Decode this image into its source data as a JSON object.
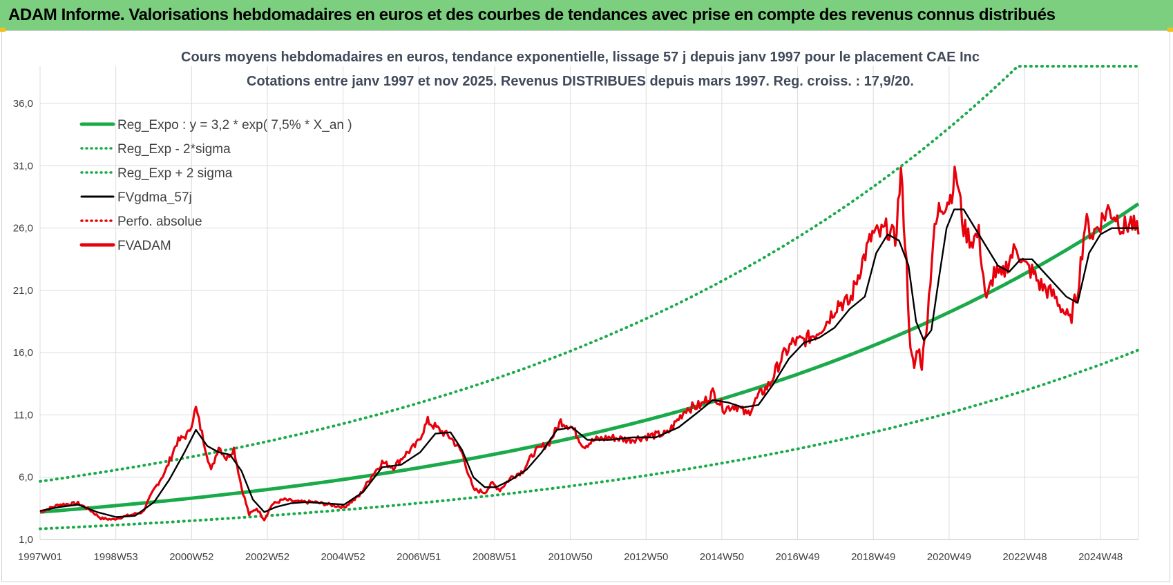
{
  "banner": {
    "title": "ADAM Informe. Valorisations hebdomadaires en euros et des courbes de tendances avec prise en compte des revenus connus distribués"
  },
  "colors": {
    "banner_bg": "#7ccf7e",
    "trend": "#1aaa4a",
    "fv57": "#000000",
    "fvadam": "#e8000b",
    "perfo": "#e8000b",
    "grid": "#dcdcdc"
  },
  "chart_data": {
    "type": "line",
    "title_lines": [
      "Cours moyens hebdomadaires en euros, tendance exponentielle, lissage 57 j depuis janv 1997  pour le placement CAE Inc",
      "Cotations entre janv 1997 et nov 2025. Revenus DISTRIBUES depuis mars 1997.  Reg. croiss. : 17,9/20."
    ],
    "x_tick_labels": [
      "1997W01",
      "1998W53",
      "2000W52",
      "2002W52",
      "2004W52",
      "2006W51",
      "2008W51",
      "2010W50",
      "2012W50",
      "2014W50",
      "2016W49",
      "2018W49",
      "2020W49",
      "2022W48",
      "2024W48"
    ],
    "x_range": [
      1997.0,
      2025.9
    ],
    "y_ticks": [
      "1,0",
      "6,0",
      "11,0",
      "16,0",
      "21,0",
      "26,0",
      "31,0",
      "36,0"
    ],
    "y_range": [
      1,
      39
    ],
    "grid": true,
    "legend_position": "top-left",
    "legend": [
      {
        "label": "Reg_Expo : y = 3,2 * exp( 7,5% *  X_an )",
        "style": "solid-thick",
        "color": "#1aaa4a"
      },
      {
        "label": "Reg_Exp - 2*sigma",
        "style": "dotted",
        "color": "#1aaa4a"
      },
      {
        "label": "Reg_Exp + 2 sigma",
        "style": "dotted",
        "color": "#1aaa4a"
      },
      {
        "label": "FVgdma_57j",
        "style": "solid",
        "color": "#000000"
      },
      {
        "label": "Perfo. absolue",
        "style": "dotted",
        "color": "#e8000b"
      },
      {
        "label": "FVADAM",
        "style": "solid-thick",
        "color": "#e8000b"
      }
    ],
    "trend": {
      "a": 3.2,
      "rate": 0.075,
      "lower_factor": 0.58,
      "upper_factor": 1.77,
      "cap": 39
    },
    "series_fvadam": {
      "x": [
        1997.0,
        1997.5,
        1998.0,
        1998.3,
        1998.6,
        1998.9,
        1999.3,
        1999.7,
        2000.0,
        2000.3,
        2000.6,
        2000.9,
        2001.1,
        2001.3,
        2001.5,
        2001.7,
        2001.9,
        2002.1,
        2002.3,
        2002.5,
        2002.7,
        2002.9,
        2003.1,
        2003.4,
        2003.8,
        2004.2,
        2004.6,
        2005.0,
        2005.4,
        2005.7,
        2006.0,
        2006.3,
        2006.6,
        2006.9,
        2007.2,
        2007.5,
        2007.8,
        2008.1,
        2008.4,
        2008.7,
        2008.9,
        2009.1,
        2009.4,
        2009.7,
        2010.0,
        2010.4,
        2010.7,
        2011.0,
        2011.3,
        2011.6,
        2012.0,
        2012.5,
        2013.0,
        2013.5,
        2014.0,
        2014.4,
        2014.7,
        2015.0,
        2015.3,
        2015.6,
        2015.9,
        2016.2,
        2016.5,
        2016.8,
        2017.1,
        2017.4,
        2017.7,
        2018.0,
        2018.3,
        2018.6,
        2018.9,
        2019.1,
        2019.3,
        2019.5,
        2019.65,
        2019.8,
        2019.9,
        2020.0,
        2020.1,
        2020.2,
        2020.35,
        2020.5,
        2020.65,
        2020.8,
        2020.95,
        2021.1,
        2021.3,
        2021.5,
        2021.7,
        2021.9,
        2022.1,
        2022.3,
        2022.5,
        2022.7,
        2022.9,
        2023.1,
        2023.3,
        2023.5,
        2023.7,
        2023.9,
        2024.1,
        2024.3,
        2024.5,
        2024.7,
        2024.9,
        2025.1,
        2025.3,
        2025.5,
        2025.7,
        2025.9
      ],
      "y": [
        3.2,
        3.8,
        3.9,
        3.4,
        2.7,
        2.6,
        2.9,
        3.2,
        5.0,
        6.5,
        8.8,
        9.5,
        11.5,
        9.0,
        6.5,
        8.5,
        7.5,
        8.3,
        5.2,
        3.0,
        3.5,
        2.6,
        3.8,
        4.2,
        4.0,
        4.0,
        3.8,
        3.6,
        4.5,
        6.0,
        7.2,
        6.8,
        7.8,
        8.6,
        10.5,
        9.8,
        9.2,
        8.0,
        5.0,
        4.8,
        5.5,
        5.0,
        6.0,
        6.5,
        8.0,
        8.8,
        10.5,
        10.0,
        8.5,
        9.0,
        9.2,
        9.0,
        9.3,
        9.5,
        11.5,
        11.8,
        12.8,
        11.5,
        11.8,
        11.0,
        12.5,
        13.5,
        15.5,
        16.8,
        17.0,
        17.5,
        18.5,
        20.0,
        20.0,
        23.0,
        25.5,
        25.5,
        26.0,
        25.0,
        30.5,
        23.0,
        16.0,
        14.8,
        16.5,
        15.0,
        19.0,
        25.0,
        27.5,
        28.0,
        28.5,
        30.5,
        26.0,
        25.0,
        25.5,
        20.0,
        22.5,
        22.0,
        23.5,
        24.5,
        23.0,
        22.5,
        21.5,
        21.0,
        20.5,
        19.5,
        18.5,
        21.0,
        26.5,
        25.5,
        26.5,
        27.5,
        27.0,
        26.0,
        26.5,
        25.5
      ]
    },
    "series_fv57": {
      "x": [
        1997.0,
        1997.5,
        1998.0,
        1998.5,
        1999.0,
        1999.5,
        2000.0,
        2000.4,
        2000.8,
        2001.1,
        2001.4,
        2001.7,
        2002.0,
        2002.3,
        2002.6,
        2002.9,
        2003.2,
        2003.6,
        2004.0,
        2004.5,
        2005.0,
        2005.5,
        2006.0,
        2006.5,
        2007.0,
        2007.4,
        2007.8,
        2008.1,
        2008.4,
        2008.7,
        2009.0,
        2009.4,
        2009.8,
        2010.2,
        2010.6,
        2011.0,
        2011.4,
        2012.0,
        2012.6,
        2013.2,
        2013.8,
        2014.3,
        2014.7,
        2015.1,
        2015.5,
        2015.9,
        2016.3,
        2016.7,
        2017.1,
        2017.5,
        2017.9,
        2018.3,
        2018.7,
        2019.0,
        2019.3,
        2019.6,
        2019.85,
        2020.05,
        2020.25,
        2020.45,
        2020.65,
        2020.85,
        2021.05,
        2021.3,
        2021.6,
        2021.9,
        2022.2,
        2022.5,
        2022.8,
        2023.1,
        2023.4,
        2023.7,
        2024.0,
        2024.3,
        2024.6,
        2024.9,
        2025.2,
        2025.5,
        2025.9
      ],
      "y": [
        3.3,
        3.6,
        3.8,
        3.2,
        2.8,
        2.9,
        4.0,
        5.8,
        8.0,
        9.8,
        8.5,
        8.0,
        7.8,
        6.5,
        4.2,
        3.2,
        3.6,
        3.9,
        4.0,
        3.9,
        3.8,
        4.8,
        6.8,
        7.0,
        8.0,
        9.5,
        9.6,
        8.2,
        6.0,
        5.2,
        5.2,
        5.8,
        6.6,
        8.0,
        9.8,
        10.0,
        9.0,
        9.0,
        9.2,
        9.2,
        10.0,
        11.2,
        12.2,
        12.0,
        11.6,
        11.8,
        13.5,
        15.5,
        16.8,
        17.2,
        18.0,
        19.5,
        20.5,
        24.0,
        25.5,
        25.0,
        23.0,
        18.5,
        17.0,
        17.8,
        22.0,
        26.0,
        27.5,
        27.5,
        26.0,
        24.5,
        23.0,
        22.5,
        23.5,
        23.5,
        22.5,
        21.5,
        20.5,
        20.0,
        24.0,
        25.5,
        26.0,
        26.0,
        26.0
      ]
    }
  }
}
